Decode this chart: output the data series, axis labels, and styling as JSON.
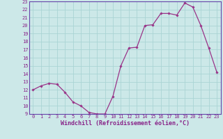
{
  "x": [
    0,
    1,
    2,
    3,
    4,
    5,
    6,
    7,
    8,
    9,
    10,
    11,
    12,
    13,
    14,
    15,
    16,
    17,
    18,
    19,
    20,
    21,
    22,
    23
  ],
  "y": [
    12,
    12.5,
    12.8,
    12.7,
    11.7,
    10.5,
    10.0,
    9.2,
    9.0,
    9.0,
    11.2,
    15.0,
    17.2,
    17.3,
    20.0,
    20.1,
    21.5,
    21.5,
    21.3,
    22.8,
    22.3,
    20.0,
    17.2,
    14.2
  ],
  "line_color": "#993388",
  "marker": "D",
  "markersize": 1.8,
  "linewidth": 0.9,
  "background_color": "#cce8e8",
  "grid_color": "#aad4d4",
  "xlabel": "Windchill (Refroidissement éolien,°C)",
  "xlabel_fontsize": 6.0,
  "ylim": [
    9,
    23
  ],
  "xlim": [
    -0.5,
    23.5
  ],
  "yticks": [
    9,
    10,
    11,
    12,
    13,
    14,
    15,
    16,
    17,
    18,
    19,
    20,
    21,
    22,
    23
  ],
  "xticks": [
    0,
    1,
    2,
    3,
    4,
    5,
    6,
    7,
    8,
    9,
    10,
    11,
    12,
    13,
    14,
    15,
    16,
    17,
    18,
    19,
    20,
    21,
    22,
    23
  ],
  "tick_fontsize": 5.0,
  "axis_color": "#882288",
  "spine_color": "#6644aa"
}
